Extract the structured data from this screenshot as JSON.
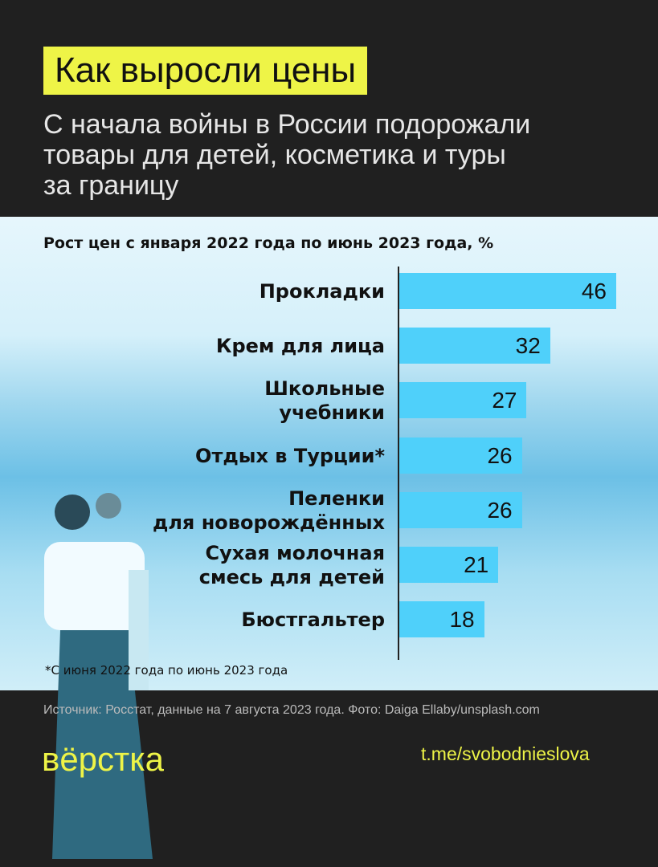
{
  "header": {
    "title": "Как выросли цены",
    "subtitle": "С начала войны в России подорожали\nтовары для детей, косметика и туры\nза границу"
  },
  "chart_data": {
    "type": "bar",
    "orientation": "horizontal",
    "title": "Рост цен с января 2022 года по июнь 2023 года, %",
    "categories": [
      "Прокладки",
      "Крем для лица",
      "Школьные\nучебники",
      "Отдых в Турции*",
      "Пеленки\nдля новорождённых",
      "Сухая молочная\nсмесь для детей",
      "Бюстгальтер"
    ],
    "values": [
      46,
      32,
      27,
      26,
      26,
      21,
      18
    ],
    "bar_color": "#4fd0fa",
    "footnote": "*С июня 2022 года по июнь 2023 года"
  },
  "footer": {
    "source": "Источник: Росстат, данные на 7 августа 2023 года. Фото: Daiga Ellaby/unsplash.com",
    "logo": "вёрстка",
    "link": "t.me/svobodnieslova"
  }
}
